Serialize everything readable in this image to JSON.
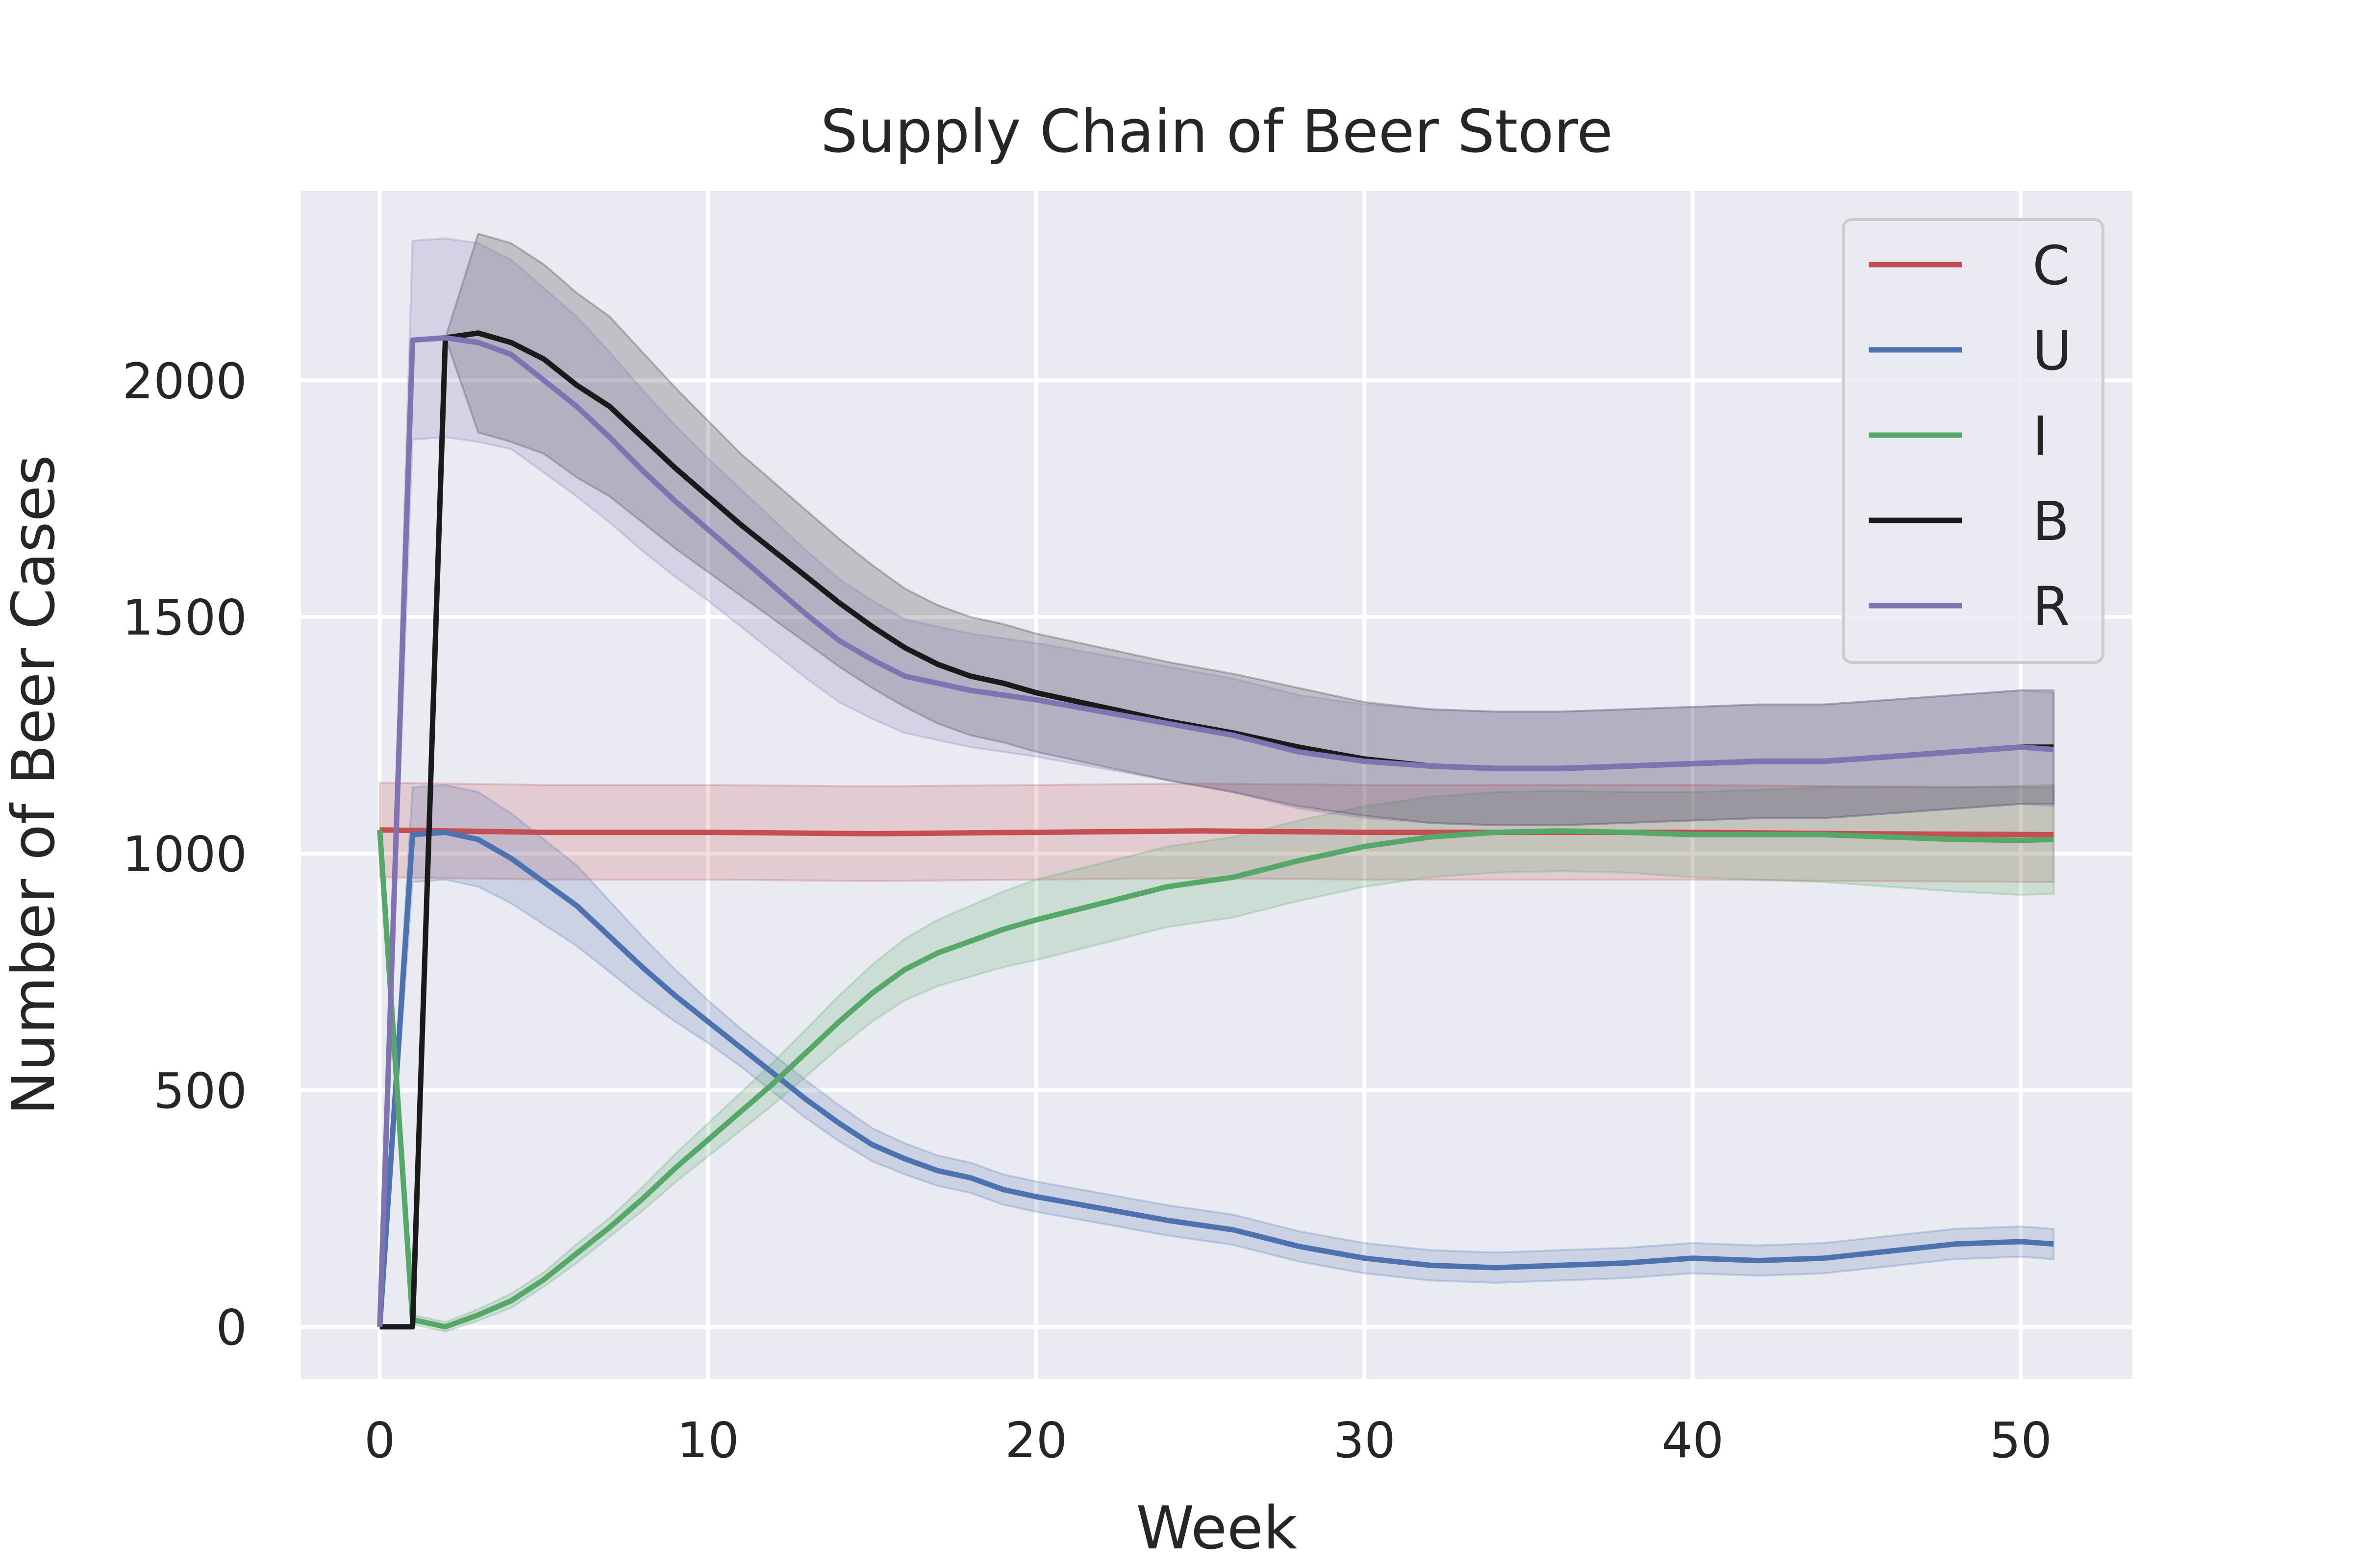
{
  "chart_data": {
    "type": "line",
    "title": "Supply Chain of Beer Store",
    "xlabel": "Week",
    "ylabel": "Number of Beer Cases",
    "xlim": [
      -2.4,
      53.4
    ],
    "ylim": [
      -110,
      2400
    ],
    "xticks": [
      0,
      10,
      20,
      30,
      40,
      50
    ],
    "yticks": [
      0,
      500,
      1000,
      1500,
      2000
    ],
    "grid": true,
    "legend_position": "top-right",
    "background": "#eaeaf2",
    "series": [
      {
        "name": "C",
        "color": "#c44e52",
        "x": [
          0,
          5,
          10,
          15,
          20,
          25,
          30,
          35,
          40,
          45,
          51
        ],
        "y": [
          1050,
          1045,
          1045,
          1042,
          1045,
          1048,
          1045,
          1045,
          1045,
          1042,
          1040
        ],
        "band": [
          100,
          100,
          100,
          100,
          100,
          100,
          100,
          100,
          100,
          100,
          100
        ]
      },
      {
        "name": "U",
        "color": "#4c72b0",
        "x": [
          0,
          1,
          2,
          3,
          4,
          5,
          6,
          7,
          8,
          9,
          10,
          11,
          12,
          13,
          14,
          15,
          16,
          17,
          18,
          19,
          20,
          22,
          24,
          26,
          28,
          30,
          32,
          34,
          36,
          38,
          40,
          42,
          44,
          46,
          48,
          50,
          51
        ],
        "y": [
          0,
          1040,
          1045,
          1030,
          990,
          940,
          890,
          825,
          760,
          700,
          645,
          590,
          535,
          480,
          430,
          385,
          355,
          330,
          315,
          290,
          275,
          250,
          225,
          205,
          170,
          145,
          130,
          125,
          130,
          135,
          145,
          140,
          145,
          160,
          175,
          180,
          175
        ],
        "band": [
          0,
          100,
          100,
          100,
          95,
          90,
          85,
          75,
          65,
          55,
          45,
          40,
          40,
          40,
          38,
          35,
          33,
          32,
          32,
          32,
          32,
          32,
          32,
          32,
          32,
          32,
          32,
          32,
          32,
          32,
          32,
          32,
          32,
          32,
          32,
          32,
          32
        ]
      },
      {
        "name": "I",
        "color": "#55a868",
        "x": [
          0,
          1,
          2,
          3,
          4,
          5,
          6,
          7,
          8,
          9,
          10,
          11,
          12,
          13,
          14,
          15,
          16,
          17,
          18,
          19,
          20,
          22,
          24,
          26,
          28,
          30,
          32,
          34,
          36,
          38,
          40,
          42,
          44,
          46,
          48,
          50,
          51
        ],
        "y": [
          1050,
          15,
          0,
          25,
          55,
          100,
          155,
          210,
          270,
          335,
          395,
          455,
          515,
          580,
          645,
          705,
          755,
          790,
          815,
          840,
          860,
          895,
          930,
          950,
          985,
          1015,
          1035,
          1045,
          1048,
          1045,
          1040,
          1040,
          1040,
          1035,
          1030,
          1028,
          1030
        ],
        "band": [
          0,
          10,
          10,
          12,
          15,
          15,
          20,
          20,
          25,
          30,
          35,
          40,
          45,
          50,
          55,
          60,
          65,
          70,
          75,
          80,
          85,
          85,
          85,
          85,
          85,
          85,
          85,
          85,
          85,
          85,
          90,
          95,
          100,
          105,
          110,
          115,
          115
        ]
      },
      {
        "name": "B",
        "color": "#1a1a1a",
        "x": [
          0,
          1,
          2,
          3,
          4,
          5,
          6,
          7,
          8,
          9,
          10,
          11,
          12,
          13,
          14,
          15,
          16,
          17,
          18,
          19,
          20,
          22,
          24,
          26,
          28,
          30,
          32,
          34,
          36,
          38,
          40,
          42,
          44,
          46,
          48,
          50,
          51
        ],
        "y": [
          0,
          0,
          2090,
          2100,
          2080,
          2045,
          1990,
          1945,
          1880,
          1815,
          1755,
          1695,
          1640,
          1585,
          1530,
          1480,
          1435,
          1400,
          1375,
          1360,
          1340,
          1310,
          1280,
          1255,
          1225,
          1200,
          1185,
          1180,
          1180,
          1185,
          1190,
          1195,
          1195,
          1205,
          1215,
          1225,
          1225
        ],
        "band": [
          0,
          0,
          0,
          210,
          210,
          200,
          195,
          190,
          180,
          170,
          160,
          150,
          145,
          140,
          135,
          130,
          125,
          125,
          125,
          125,
          125,
          125,
          125,
          125,
          125,
          120,
          120,
          120,
          120,
          120,
          120,
          120,
          120,
          120,
          120,
          120,
          120
        ]
      },
      {
        "name": "R",
        "color": "#8172b2",
        "x": [
          0,
          1,
          2,
          3,
          4,
          5,
          6,
          7,
          8,
          9,
          10,
          11,
          12,
          13,
          14,
          15,
          16,
          17,
          18,
          19,
          20,
          22,
          24,
          26,
          28,
          30,
          32,
          34,
          36,
          38,
          40,
          42,
          44,
          46,
          48,
          50,
          51
        ],
        "y": [
          0,
          2085,
          2090,
          2080,
          2055,
          2000,
          1945,
          1880,
          1810,
          1745,
          1685,
          1625,
          1565,
          1505,
          1450,
          1410,
          1375,
          1360,
          1345,
          1335,
          1325,
          1300,
          1275,
          1250,
          1215,
          1195,
          1185,
          1180,
          1180,
          1185,
          1190,
          1195,
          1195,
          1205,
          1215,
          1225,
          1220
        ],
        "band": [
          0,
          210,
          210,
          210,
          200,
          195,
          190,
          180,
          170,
          160,
          150,
          145,
          140,
          135,
          130,
          125,
          120,
          120,
          120,
          120,
          120,
          120,
          120,
          120,
          120,
          120,
          120,
          120,
          120,
          120,
          120,
          120,
          120,
          120,
          120,
          120,
          120
        ]
      }
    ]
  }
}
